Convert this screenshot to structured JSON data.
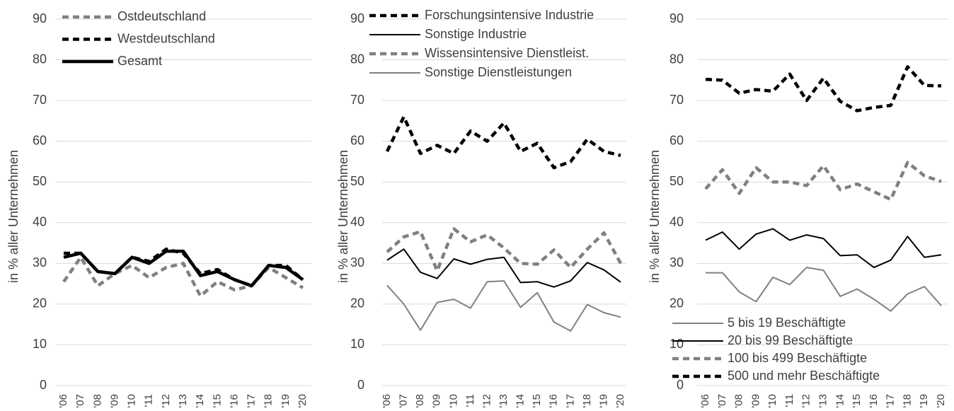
{
  "chart_data": [
    {
      "type": "line",
      "ylabel": "in % aller Unternehmen",
      "legend": "upper left",
      "categories": [
        "'06",
        "'07",
        "'08",
        "'09",
        "'10",
        "'11",
        "'12",
        "'13",
        "'14",
        "'15",
        "'16",
        "'17",
        "'18",
        "'19",
        "'20"
      ],
      "ylim": [
        0,
        90
      ],
      "yticks": [
        0,
        10,
        20,
        30,
        40,
        50,
        60,
        70,
        80,
        90
      ],
      "grid": true,
      "series": [
        {
          "name": "Ostdeutschland",
          "color": "#808080",
          "line_style": "dashed",
          "line_weight": "thick",
          "values": [
            25.5,
            31.5,
            24.5,
            27.5,
            29.5,
            26.5,
            29,
            30,
            22,
            25.5,
            23.5,
            24.5,
            29,
            26.5,
            24
          ]
        },
        {
          "name": "Westdeutschland",
          "color": "#000000",
          "line_style": "dashed",
          "line_weight": "thick",
          "values": [
            32.5,
            32.5,
            28,
            27.5,
            31.5,
            30.5,
            33.5,
            32.5,
            27.5,
            28.5,
            26,
            24.5,
            29.5,
            29.5,
            26
          ]
        },
        {
          "name": "Gesamt",
          "color": "#000000",
          "line_style": "solid",
          "line_weight": "thick",
          "values": [
            31.5,
            32.5,
            28,
            27.5,
            31.5,
            30,
            33,
            33,
            27,
            28,
            26,
            24.5,
            29.5,
            29,
            26
          ]
        }
      ]
    },
    {
      "type": "line",
      "ylabel": "in % aller Unternehmen",
      "legend": "upper center",
      "categories": [
        "'06",
        "'07",
        "'08",
        "'09",
        "'10",
        "'11",
        "'12",
        "'13",
        "'14",
        "'15",
        "'16",
        "'17",
        "'18",
        "'19",
        "'20"
      ],
      "ylim": [
        0,
        90
      ],
      "yticks": [
        0,
        10,
        20,
        30,
        40,
        50,
        60,
        70,
        80,
        90
      ],
      "grid": true,
      "series": [
        {
          "name": "Forschungsintensive Industrie",
          "color": "#000000",
          "line_style": "dashed",
          "line_weight": "thick",
          "values": [
            57.5,
            66,
            57,
            59,
            57,
            62.5,
            60,
            64.5,
            57.5,
            59.5,
            53.5,
            55,
            60.5,
            57.5,
            56.5
          ]
        },
        {
          "name": "Sonstige Industrie",
          "color": "#000000",
          "line_style": "solid",
          "line_weight": "thin",
          "values": [
            30.8,
            33.5,
            27.8,
            26.3,
            31.1,
            29.8,
            31,
            31.5,
            25.3,
            25.5,
            24.2,
            25.7,
            30.2,
            28.4,
            25.4
          ]
        },
        {
          "name": "Wissensintensive Dienstleist.",
          "color": "#808080",
          "line_style": "dashed",
          "line_weight": "thick",
          "values": [
            32.8,
            36.5,
            37.8,
            28.2,
            38.5,
            35.3,
            37,
            33.8,
            30,
            29.8,
            33.3,
            29,
            33.5,
            37.5,
            30
          ]
        },
        {
          "name": "Sonstige Dienstleistungen",
          "color": "#808080",
          "line_style": "solid",
          "line_weight": "thin",
          "values": [
            24.6,
            20,
            13.6,
            20.4,
            21.2,
            19,
            25.5,
            25.7,
            19.2,
            22.8,
            15.6,
            13.4,
            19.9,
            17.9,
            16.8
          ]
        }
      ]
    },
    {
      "type": "line",
      "ylabel": "in % aller Unternehmen",
      "legend": "lower right",
      "categories": [
        "'06",
        "'07",
        "'08",
        "'09",
        "'10",
        "'11",
        "'12",
        "'13",
        "'14",
        "'15",
        "'16",
        "'17",
        "'18",
        "'19",
        "'20"
      ],
      "ylim": [
        0,
        90
      ],
      "yticks": [
        0,
        10,
        20,
        30,
        40,
        50,
        60,
        70,
        80,
        90
      ],
      "grid": true,
      "series": [
        {
          "name": "5 bis 19 Beschäftigte",
          "color": "#808080",
          "line_style": "solid",
          "line_weight": "thin",
          "values": [
            27.7,
            27.7,
            23,
            20.6,
            26.6,
            24.8,
            29,
            28.3,
            21.9,
            23.7,
            21.2,
            18.3,
            22.5,
            24.3,
            19.6
          ]
        },
        {
          "name": "20 bis 99 Beschäftigte",
          "color": "#000000",
          "line_style": "solid",
          "line_weight": "thin",
          "values": [
            35.7,
            37.7,
            33.5,
            37.2,
            38.5,
            35.7,
            37,
            36.1,
            31.9,
            32.1,
            29,
            30.8,
            36.6,
            31.5,
            32.1
          ]
        },
        {
          "name": "100 bis 499 Beschäftigte",
          "color": "#808080",
          "line_style": "dashed",
          "line_weight": "thick",
          "values": [
            48.3,
            53,
            47.2,
            53.5,
            50,
            50,
            49.1,
            54,
            48.1,
            49.5,
            47.6,
            45.7,
            54.8,
            51.5,
            50.1
          ]
        },
        {
          "name": "500 und mehr Beschäftigte",
          "color": "#000000",
          "line_style": "dashed",
          "line_weight": "thick",
          "values": [
            75.2,
            75,
            71.8,
            72.7,
            72.3,
            76.5,
            70,
            75.5,
            69.8,
            67.5,
            68.3,
            68.8,
            78.3,
            73.7,
            73.6
          ]
        }
      ]
    }
  ]
}
